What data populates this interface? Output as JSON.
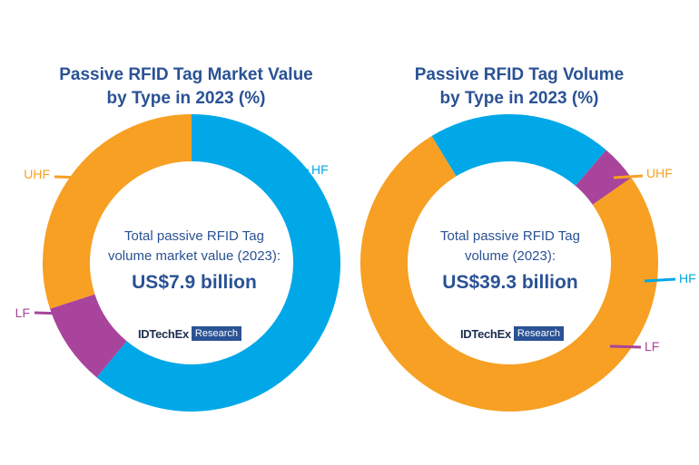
{
  "chart_data": [
    {
      "type": "pie",
      "title_lines": [
        "Passive RFID Tag Market Value",
        "by Type in 2023 (%)"
      ],
      "center_lines": [
        "Total passive RFID Tag",
        "volume market value (2023):"
      ],
      "center_total": "US$7.9 billion",
      "brand": {
        "name": "IDTechEx",
        "tag": "Research"
      },
      "slices": [
        {
          "label": "HF",
          "value": 61,
          "color": "#00a8e8"
        },
        {
          "label": "LF",
          "value": 9,
          "color": "#a8449b"
        },
        {
          "label": "UHF",
          "value": 30,
          "color": "#f7a023"
        }
      ]
    },
    {
      "type": "pie",
      "title_lines": [
        "Passive RFID Tag Volume",
        "by Type in 2023 (%)"
      ],
      "center_lines": [
        "Total passive RFID Tag",
        "volume (2023):"
      ],
      "center_total": "US$39.3 billion",
      "brand": {
        "name": "IDTechEx",
        "tag": "Research"
      },
      "slices": [
        {
          "label": "UHF",
          "value": 76,
          "color": "#f7a023"
        },
        {
          "label": "HF",
          "value": 20,
          "color": "#00a8e8"
        },
        {
          "label": "LF",
          "value": 4,
          "color": "#a8449b"
        }
      ]
    }
  ]
}
